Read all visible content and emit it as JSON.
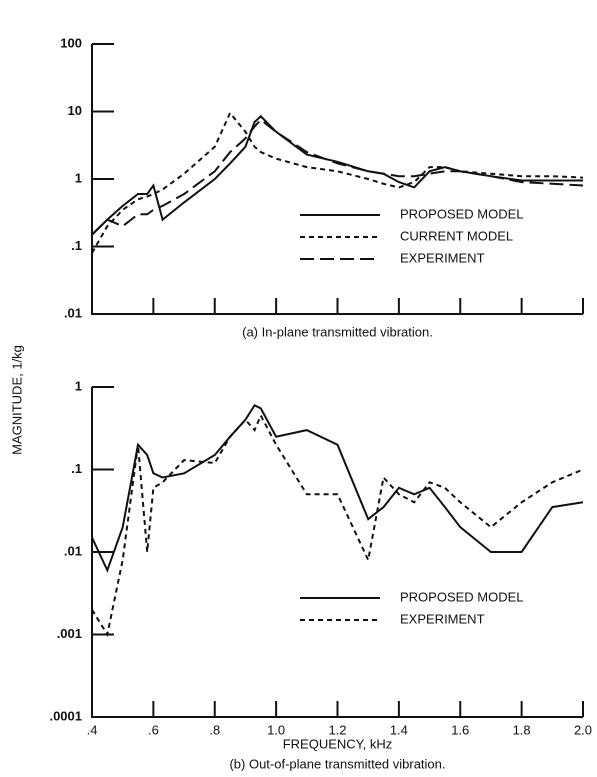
{
  "ylabel": "MAGNITUDE, 1/kg",
  "chart_data": [
    {
      "type": "line",
      "title": "(a)  In-plane transmitted vibration.",
      "log_y": true,
      "x": [
        0.4,
        0.45,
        0.5,
        0.55,
        0.58,
        0.6,
        0.63,
        0.7,
        0.8,
        0.85,
        0.9,
        0.93,
        0.95,
        1.0,
        1.1,
        1.2,
        1.3,
        1.35,
        1.4,
        1.45,
        1.5,
        1.55,
        1.6,
        1.7,
        1.8,
        1.9,
        2.0
      ],
      "series": [
        {
          "name": "PROPOSED MODEL",
          "color": "#111111",
          "line_style": "solid",
          "values": [
            0.15,
            0.25,
            0.4,
            0.6,
            0.6,
            0.8,
            0.25,
            0.45,
            1,
            1.7,
            3,
            7,
            8.5,
            5,
            2.3,
            1.8,
            1.3,
            1.2,
            0.9,
            0.75,
            1.3,
            1.5,
            1.3,
            1.1,
            0.95,
            0.95,
            0.95
          ]
        },
        {
          "name": "CURRENT MODEL",
          "color": "#111111",
          "line_style": "short",
          "values": [
            0.08,
            0.2,
            0.35,
            0.5,
            0.55,
            0.6,
            0.7,
            1.2,
            3,
            9.5,
            5,
            3,
            2.5,
            2,
            1.5,
            1.3,
            1.0,
            0.85,
            0.75,
            0.9,
            1.5,
            1.5,
            1.3,
            1.2,
            1.1,
            1.1,
            1.05
          ]
        },
        {
          "name": "EXPERIMENT",
          "color": "#111111",
          "line_style": "long",
          "values": [
            0.15,
            0.25,
            0.2,
            0.3,
            0.3,
            0.35,
            0.4,
            0.6,
            1.3,
            2.5,
            4,
            6,
            7.5,
            5,
            2.5,
            1.7,
            1.3,
            1.2,
            1.1,
            1.1,
            1.2,
            1.3,
            1.3,
            1.1,
            0.9,
            0.85,
            0.8
          ]
        }
      ],
      "xlim": [
        0.4,
        2.0
      ],
      "xticks": [
        0.4,
        0.6,
        0.8,
        1.0,
        1.2,
        1.4,
        1.6,
        1.8,
        2.0
      ],
      "ylim": [
        0.01,
        100
      ],
      "yticks": [
        {
          "value": 0.01,
          "label": ".01"
        },
        {
          "value": 0.1,
          "label": ".1"
        },
        1,
        10,
        100
      ]
    },
    {
      "type": "line",
      "title": "(b)  Out-of-plane transmitted vibration.",
      "xlabel": "FREQUENCY, kHz",
      "log_y": true,
      "x": [
        0.4,
        0.45,
        0.5,
        0.55,
        0.58,
        0.6,
        0.63,
        0.7,
        0.8,
        0.85,
        0.9,
        0.93,
        0.95,
        1.0,
        1.1,
        1.2,
        1.3,
        1.35,
        1.4,
        1.45,
        1.5,
        1.55,
        1.6,
        1.7,
        1.8,
        1.9,
        2.0
      ],
      "series": [
        {
          "name": "PROPOSED MODEL",
          "color": "#111111",
          "line_style": "solid",
          "values": [
            0.015,
            0.006,
            0.02,
            0.2,
            0.15,
            0.09,
            0.08,
            0.09,
            0.15,
            0.25,
            0.4,
            0.6,
            0.55,
            0.25,
            0.3,
            0.2,
            0.025,
            0.035,
            0.06,
            0.05,
            0.06,
            0.035,
            0.02,
            0.01,
            0.01,
            0.035,
            0.04
          ]
        },
        {
          "name": "EXPERIMENT",
          "color": "#111111",
          "line_style": "short",
          "values": [
            0.002,
            0.001,
            0.008,
            0.2,
            0.01,
            0.06,
            0.07,
            0.13,
            0.12,
            0.25,
            0.4,
            0.3,
            0.45,
            0.2,
            0.05,
            0.05,
            0.008,
            0.08,
            0.05,
            0.04,
            0.07,
            0.06,
            0.04,
            0.02,
            0.04,
            0.07,
            0.1
          ]
        }
      ],
      "xlim": [
        0.4,
        2.0
      ],
      "xticks": [
        {
          "value": 0.4,
          "label": ".4"
        },
        {
          "value": 0.6,
          "label": ".6"
        },
        {
          "value": 0.8,
          "label": ".8"
        },
        {
          "value": 1.0,
          "label": "1.0"
        },
        1.2,
        1.4,
        1.6,
        1.8,
        {
          "value": 2.0,
          "label": "2.0"
        }
      ],
      "ylim": [
        0.0001,
        1
      ],
      "yticks": [
        {
          "value": 0.0001,
          "label": ".0001"
        },
        {
          "value": 0.001,
          "label": ".001"
        },
        {
          "value": 0.01,
          "label": ".01"
        },
        {
          "value": 0.1,
          "label": ".1"
        },
        1
      ]
    }
  ]
}
